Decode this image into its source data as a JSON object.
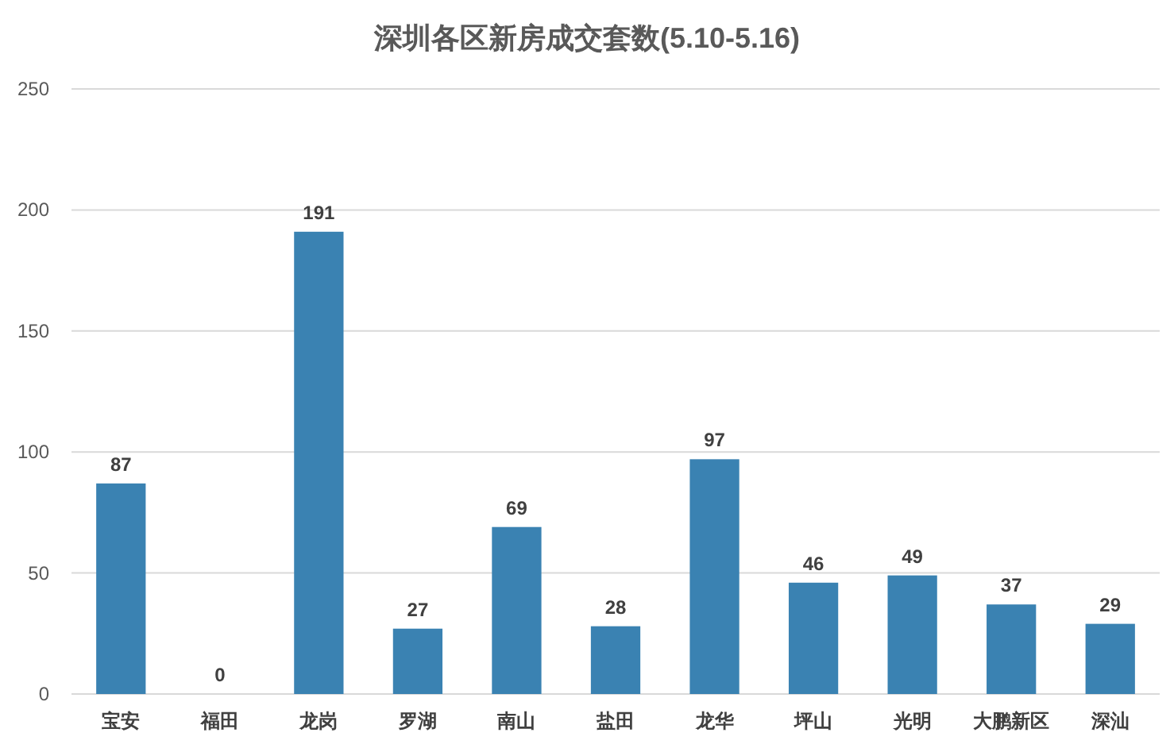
{
  "chart_data": {
    "type": "bar",
    "title": "深圳各区新房成交套数(5.10-5.16)",
    "categories": [
      "宝安",
      "福田",
      "龙岗",
      "罗湖",
      "南山",
      "盐田",
      "龙华",
      "坪山",
      "光明",
      "大鹏新区",
      "深汕"
    ],
    "values": [
      87,
      0,
      191,
      27,
      69,
      28,
      97,
      46,
      49,
      37,
      29
    ],
    "color": "#3a82b2",
    "ylim": [
      0,
      250
    ],
    "yticks": [
      0,
      50,
      100,
      150,
      200,
      250
    ],
    "grid": "y",
    "data_labels": true
  }
}
